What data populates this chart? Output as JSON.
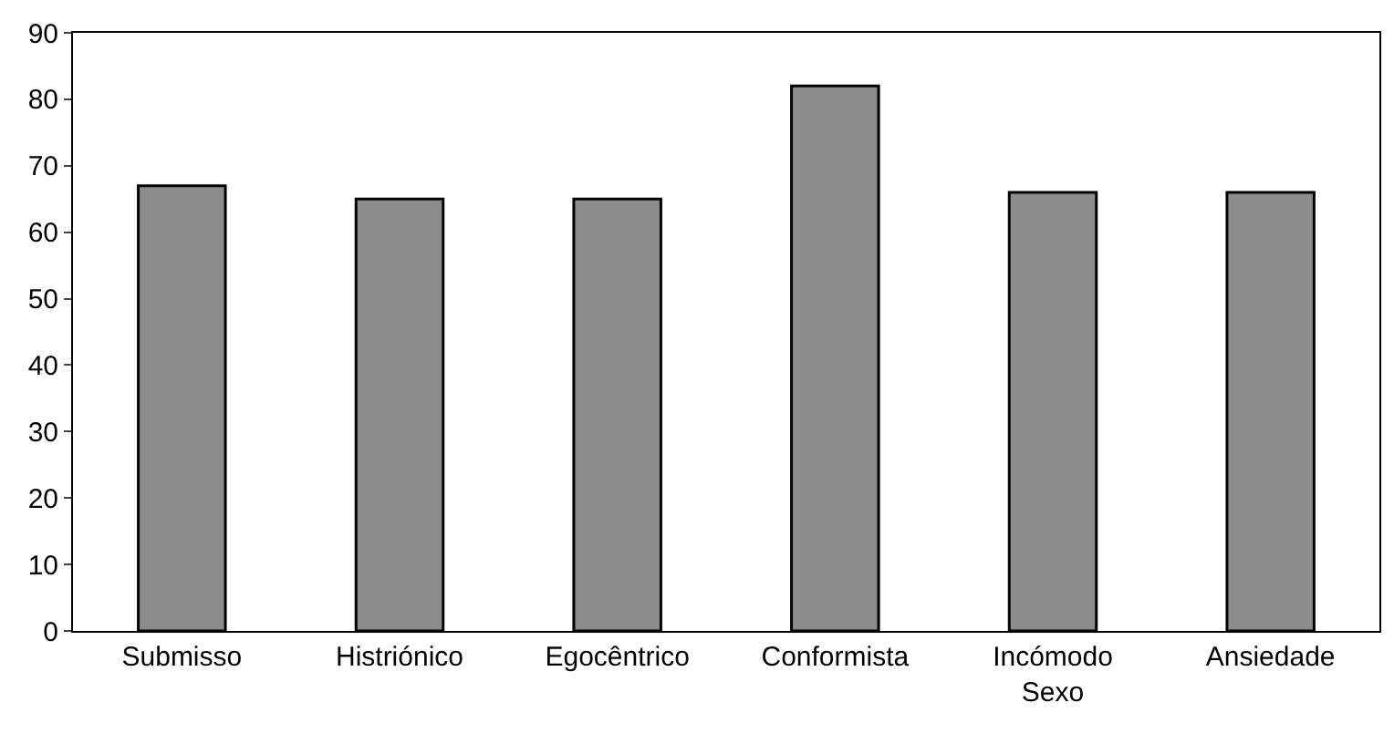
{
  "chart_data": {
    "type": "bar",
    "categories": [
      "Submisso",
      "Histriónico",
      "Egocêntrico",
      "Conformista",
      "Incómodo\nSexo",
      "Ansiedade"
    ],
    "values": [
      67,
      65,
      65,
      82,
      66,
      66
    ],
    "color": "#8c8c8c",
    "ylim": [
      0,
      90
    ],
    "yticks": [
      0,
      10,
      20,
      30,
      40,
      50,
      60,
      70,
      80,
      90
    ]
  }
}
